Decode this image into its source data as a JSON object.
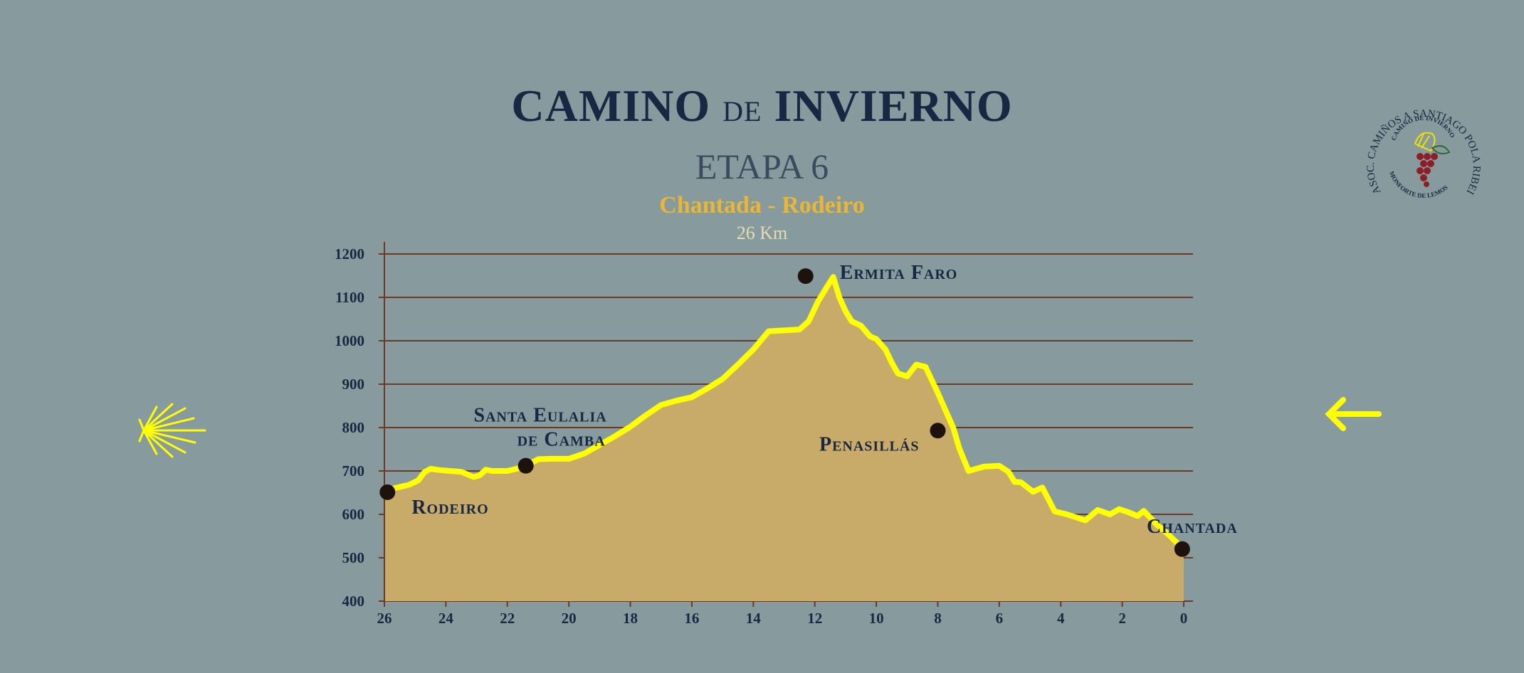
{
  "header": {
    "title_main": "CAMINO",
    "title_de": "DE",
    "title_end": "INVIERNO",
    "stage": "ETAPA 6",
    "route": "Chantada - Rodeiro",
    "distance": "26 Km"
  },
  "logo": {
    "ring_text": "ASOC. CAMIÑOS A SANTIAGO POLA RIBEIRA SACRA",
    "inner_top": "CAMIÑO DE INVIERNO",
    "inner_bottom": "MONFORTE DE LEMOS"
  },
  "icons": {
    "left": "scallop-shell-icon",
    "right": "left-arrow-icon"
  },
  "colors": {
    "background": "#879b9e",
    "profile_fill": "#c8aa69",
    "profile_line": "#ffff00",
    "grid": "#6b3a22",
    "title": "#1a2742",
    "route": "#e9b733",
    "marker": "#1e120c"
  },
  "chart_data": {
    "type": "area",
    "x_reversed": true,
    "xlim": [
      26,
      0
    ],
    "ylim": [
      400,
      1200
    ],
    "x_ticks": [
      "26",
      "24",
      "22",
      "20",
      "18",
      "16",
      "14",
      "12",
      "10",
      "8",
      "6",
      "4",
      "2",
      "0"
    ],
    "y_ticks": [
      "400",
      "500",
      "600",
      "700",
      "800",
      "900",
      "1000",
      "1100",
      "1200"
    ],
    "grid": "horizontal",
    "series": [
      {
        "x": [
          26,
          25.7,
          25.2,
          24.9,
          24.7,
          24.5,
          24.2,
          23.5,
          23.1,
          22.9,
          22.7,
          22.5,
          22.0,
          21.7,
          21.4,
          21.0,
          20.6,
          20.0,
          19.5,
          19.0,
          18.5,
          18.0,
          17.5,
          17.0,
          16.5,
          16.0,
          15.5,
          15.0,
          14.5,
          14.0,
          13.5,
          13.0,
          12.5,
          12.2,
          11.9,
          11.6,
          11.4,
          11.2,
          11.0,
          10.8,
          10.5,
          10.2,
          10.0,
          9.7,
          9.5,
          9.3,
          9.0,
          8.7,
          8.4,
          8.0,
          7.8,
          7.5,
          7.3,
          7.0,
          6.5,
          6.0,
          5.7,
          5.5,
          5.3,
          4.9,
          4.6,
          4.2,
          3.8,
          3.2,
          2.8,
          2.4,
          2.1,
          1.8,
          1.5,
          1.3,
          0.9,
          0.6,
          0.3,
          0
        ],
        "y": [
          650,
          660,
          668,
          678,
          697,
          705,
          702,
          698,
          686,
          690,
          703,
          700,
          700,
          705,
          712,
          727,
          728,
          728,
          740,
          760,
          780,
          802,
          828,
          852,
          862,
          870,
          890,
          912,
          945,
          980,
          1022,
          1024,
          1026,
          1045,
          1090,
          1125,
          1147,
          1100,
          1068,
          1045,
          1035,
          1010,
          1004,
          980,
          950,
          925,
          918,
          945,
          940,
          880,
          848,
          800,
          752,
          700,
          710,
          712,
          698,
          675,
          674,
          652,
          662,
          607,
          600,
          586,
          610,
          600,
          612,
          605,
          596,
          608,
          578,
          560,
          540,
          520
        ]
      }
    ],
    "annotations": [
      {
        "label": "Rodeiro",
        "x": 25.9,
        "y": 651
      },
      {
        "label": "Santa Eulalia",
        "label2": "de Camba",
        "x": 21.4,
        "y": 712
      },
      {
        "label": "Ermita Faro",
        "x": 12.3,
        "y": 1149
      },
      {
        "label": "Penasillás",
        "x": 8.0,
        "y": 793
      },
      {
        "label": "Chantada",
        "x": 0.05,
        "y": 520
      }
    ]
  }
}
